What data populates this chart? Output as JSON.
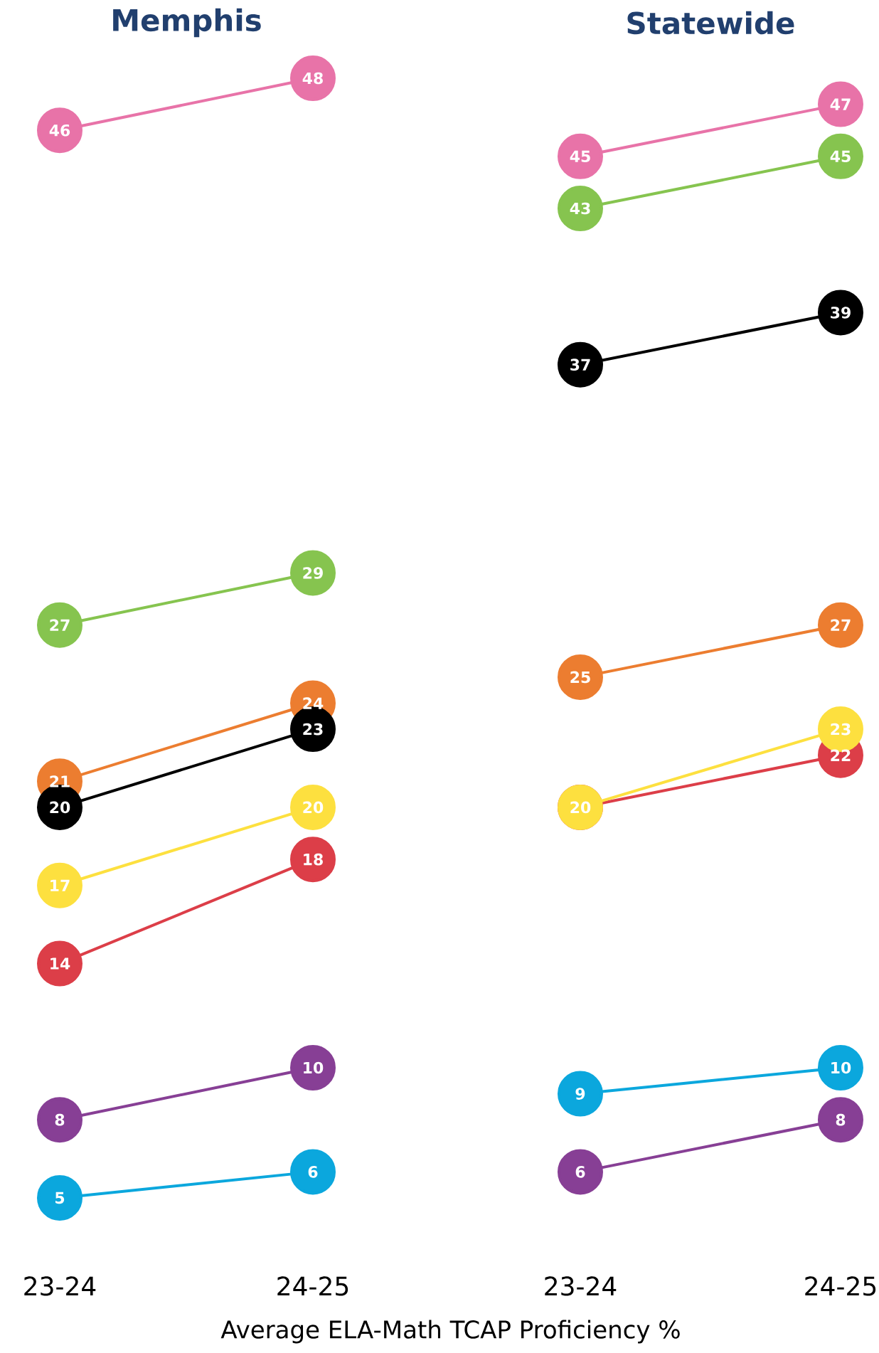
{
  "chart_data": [
    {
      "type": "line",
      "title": "Memphis",
      "xlabel": "Average ELA-Math TCAP Proficiency %",
      "categories": [
        "23-24",
        "24-25"
      ],
      "tick_labels": "x",
      "marker": "circle",
      "line_style": "solid",
      "data_labels": true,
      "series": [
        {
          "color": "#e873a8",
          "values": [
            46,
            48
          ]
        },
        {
          "color": "#86c44f",
          "values": [
            27,
            29
          ]
        },
        {
          "color": "#ec7d30",
          "values": [
            21,
            24
          ]
        },
        {
          "color": "#000000",
          "values": [
            20,
            23
          ]
        },
        {
          "color": "#fde03f",
          "values": [
            17,
            20
          ]
        },
        {
          "color": "#dc3e48",
          "values": [
            14,
            18
          ]
        },
        {
          "color": "#873f95",
          "values": [
            8,
            10
          ]
        },
        {
          "color": "#0ba7dd",
          "values": [
            5,
            6
          ]
        }
      ]
    },
    {
      "type": "line",
      "title": "Statewide",
      "categories": [
        "23-24",
        "24-25"
      ],
      "tick_labels": "x",
      "marker": "circle",
      "line_style": "solid",
      "series": [
        {
          "color": "#e873a8",
          "values": [
            45,
            47
          ],
          "value_labels": [
            "45",
            "47"
          ]
        },
        {
          "color": "#86c44f",
          "values": [
            43,
            45
          ],
          "value_labels": [
            "43",
            "45"
          ]
        },
        {
          "color": "#000000",
          "values": [
            37,
            39
          ],
          "value_labels": [
            "37",
            "39"
          ]
        },
        {
          "color": "#ec7d30",
          "values": [
            25,
            27
          ],
          "value_labels": [
            "25",
            "27"
          ]
        },
        {
          "color": "#dc3e48",
          "values": [
            20,
            22
          ],
          "value_labels": [
            null,
            "22"
          ]
        },
        {
          "color": "#fde03f",
          "values": [
            20,
            23
          ],
          "value_labels": [
            "20",
            "23"
          ]
        },
        {
          "color": "#0ba7dd",
          "values": [
            9,
            10
          ],
          "value_labels": [
            "9",
            "10"
          ]
        },
        {
          "color": "#873f95",
          "values": [
            6,
            8
          ],
          "value_labels": [
            "6",
            "8"
          ]
        }
      ]
    }
  ]
}
